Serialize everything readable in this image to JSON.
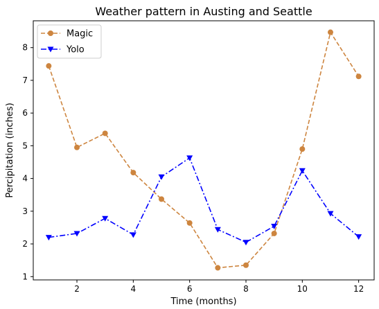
{
  "chart_data": {
    "type": "line",
    "title": "Weather pattern in Austing and Seattle",
    "xlabel": "Time (months)",
    "ylabel": "Percipitation (inches)",
    "x": [
      1,
      2,
      3,
      4,
      5,
      6,
      7,
      8,
      9,
      10,
      11,
      12
    ],
    "xlim": [
      0.45,
      12.55
    ],
    "ylim": [
      0.9,
      8.82
    ],
    "xticks": [
      2,
      4,
      6,
      8,
      10,
      12
    ],
    "yticks": [
      1,
      2,
      3,
      4,
      5,
      6,
      7,
      8
    ],
    "grid": false,
    "legend_position": "upper left",
    "series": [
      {
        "name": "Magic",
        "color": "#cd853f",
        "line_style": "dashed",
        "marker": "circle",
        "values": [
          7.44,
          4.95,
          5.38,
          4.18,
          3.37,
          2.64,
          1.27,
          1.35,
          2.32,
          4.9,
          8.47,
          7.12
        ]
      },
      {
        "name": "Yolo",
        "color": "#0000ff",
        "line_style": "dashdot",
        "marker": "triangle-down",
        "values": [
          2.2,
          2.32,
          2.78,
          2.28,
          4.05,
          4.63,
          2.44,
          2.05,
          2.54,
          4.24,
          2.93,
          2.22
        ]
      }
    ]
  }
}
